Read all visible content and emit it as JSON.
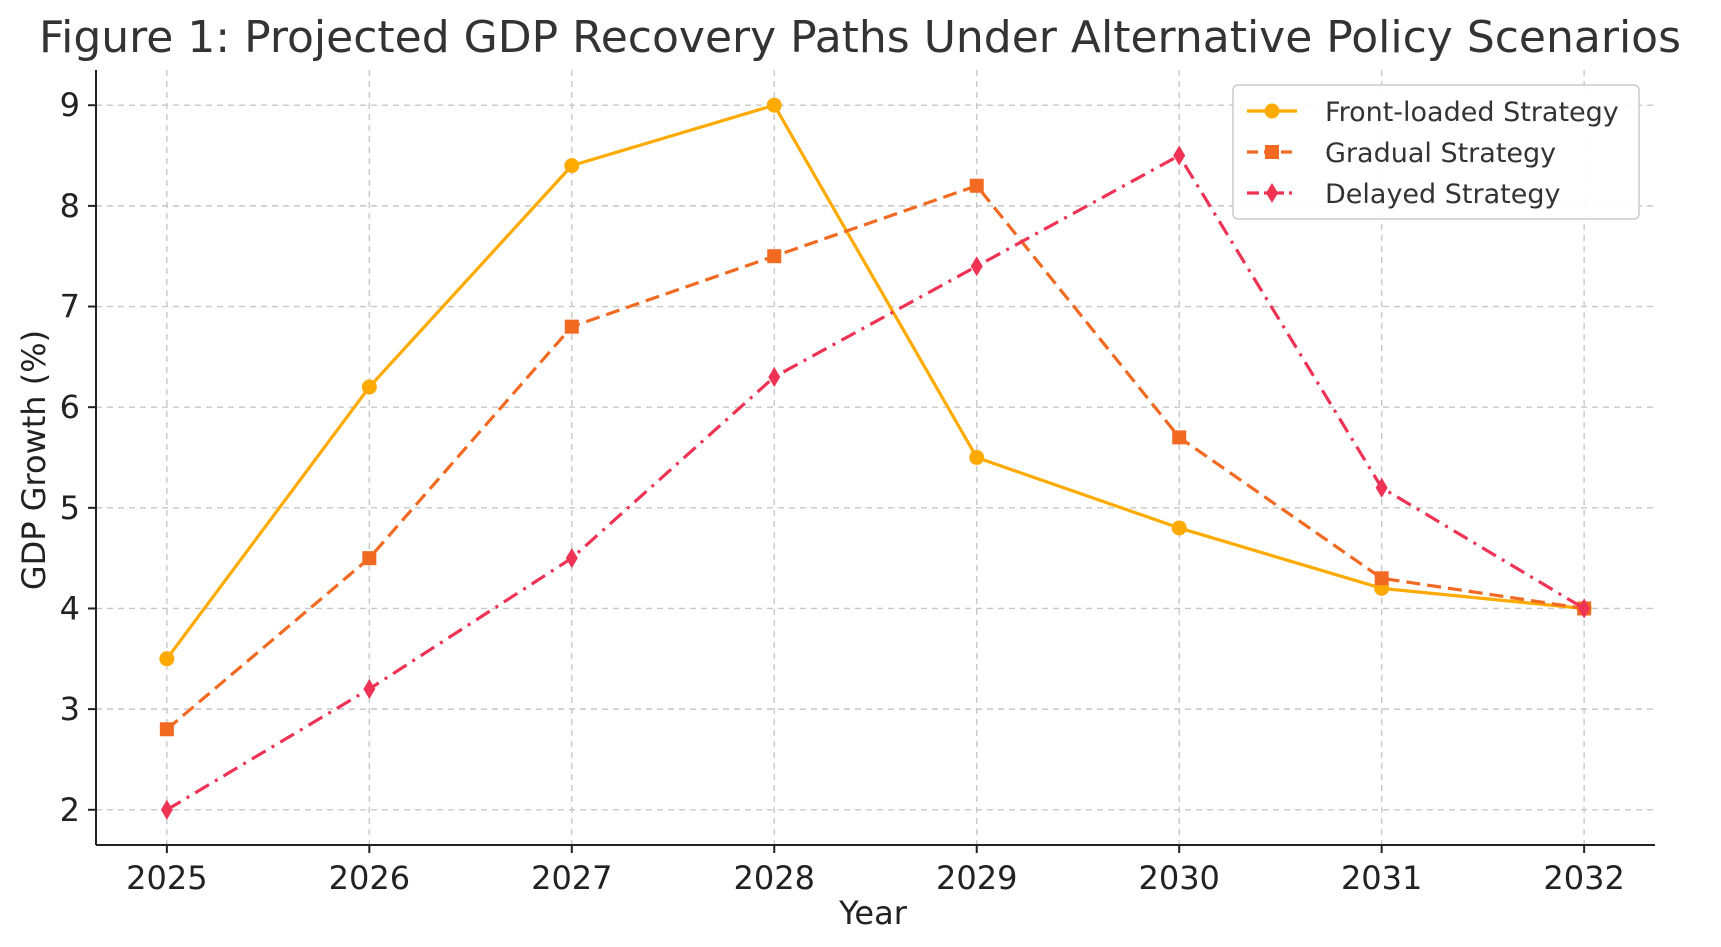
{
  "chart_data": {
    "type": "line",
    "title": "Figure 1: Projected GDP Recovery Paths Under Alternative Policy Scenarios",
    "xlabel": "Year",
    "ylabel": "GDP Growth (%)",
    "x": [
      "2025",
      "2026",
      "2027",
      "2028",
      "2029",
      "2030",
      "2031",
      "2032"
    ],
    "xlim": [
      2024.65,
      2032.35
    ],
    "ylim": [
      1.65,
      9.35
    ],
    "yticks": [
      2,
      3,
      4,
      5,
      6,
      7,
      8,
      9
    ],
    "grid": true,
    "legend_position": "top-right",
    "series": [
      {
        "name": "Front-loaded Strategy",
        "values": [
          3.5,
          6.2,
          8.4,
          9.0,
          5.5,
          4.8,
          4.2,
          4.0
        ],
        "color": "#FFAA00",
        "line_style": "solid",
        "marker": "circle"
      },
      {
        "name": "Gradual Strategy",
        "values": [
          2.8,
          4.5,
          6.8,
          7.5,
          8.2,
          5.7,
          4.3,
          4.0
        ],
        "color": "#F26A22",
        "line_style": "dashed",
        "marker": "square"
      },
      {
        "name": "Delayed Strategy",
        "values": [
          2.0,
          3.2,
          4.5,
          6.3,
          7.4,
          8.5,
          5.2,
          4.0
        ],
        "color": "#EE3355",
        "line_style": "dash-dot",
        "marker": "thin-diamond"
      }
    ]
  }
}
